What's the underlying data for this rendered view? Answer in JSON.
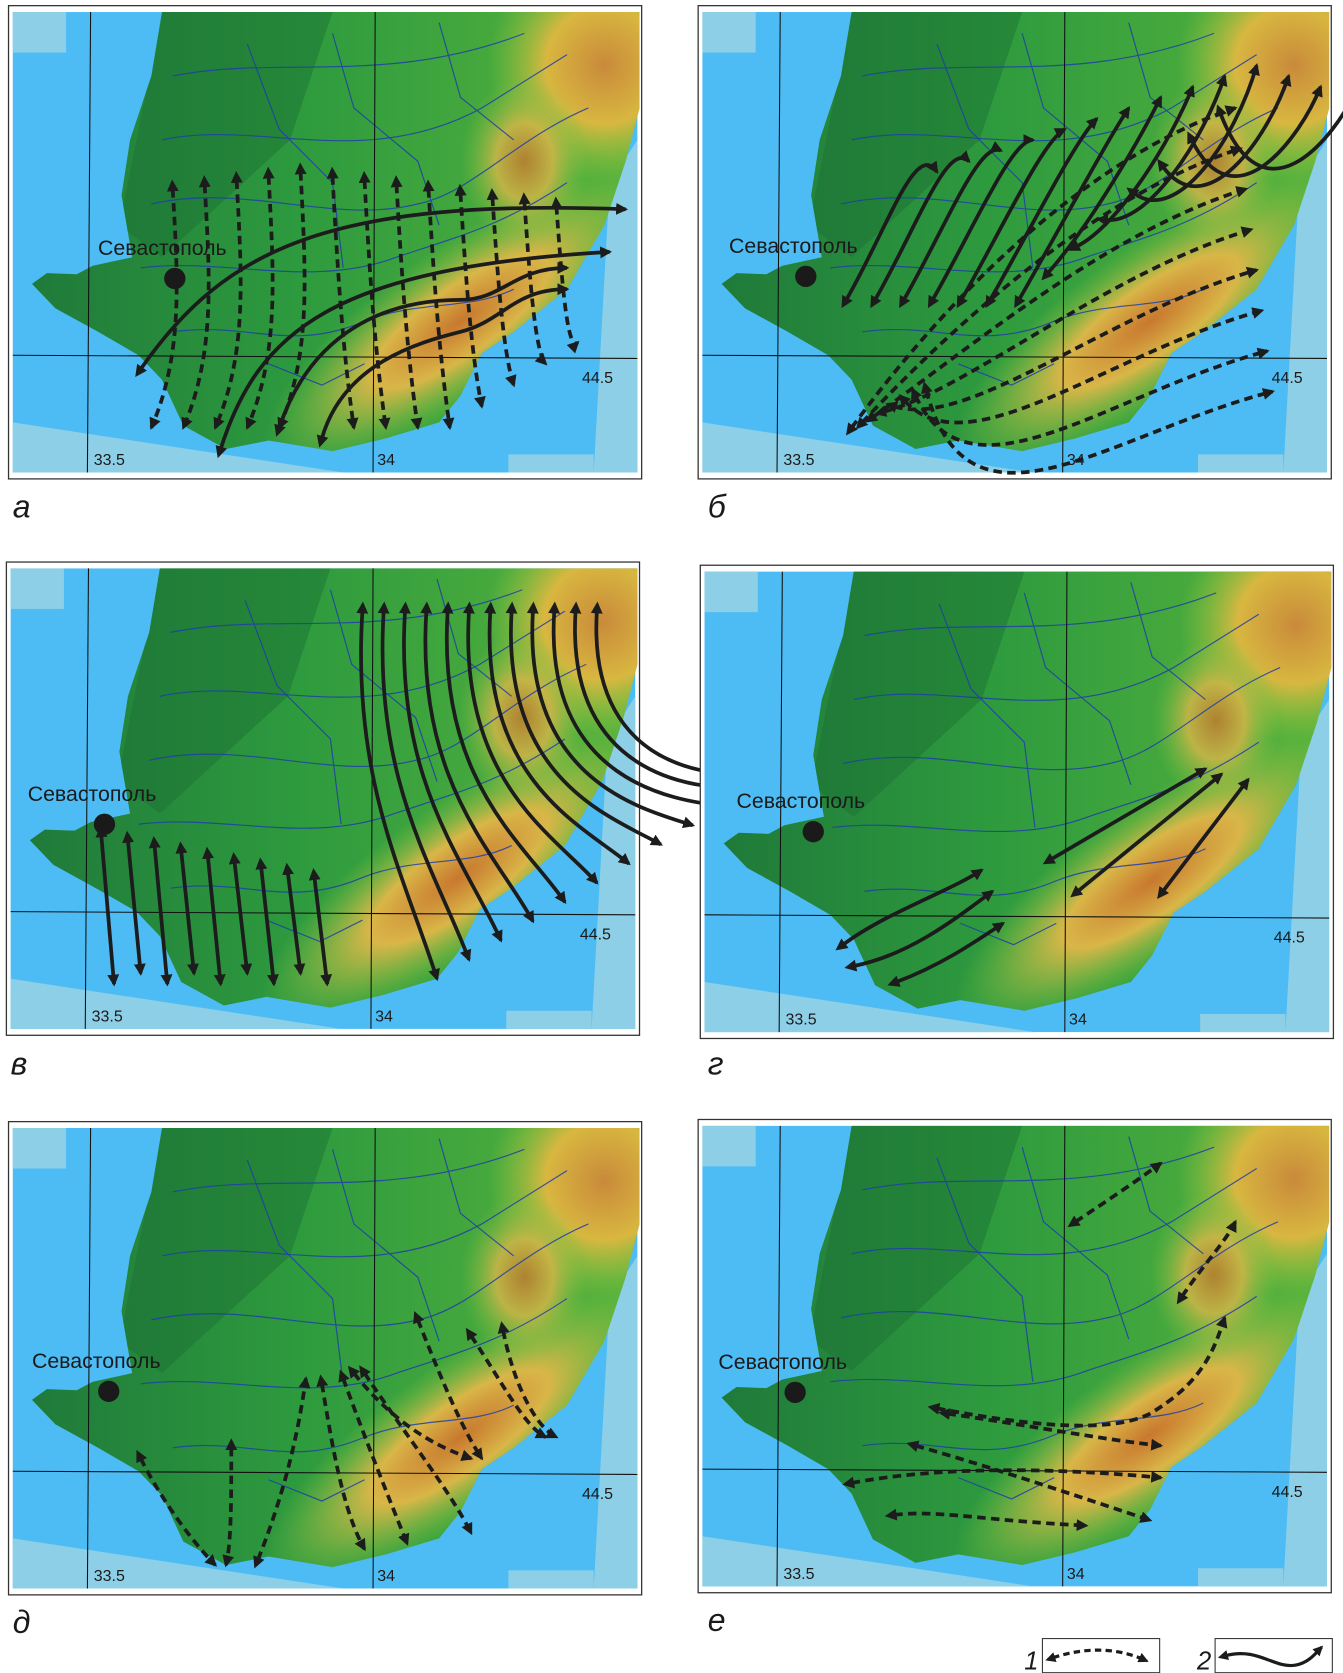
{
  "panels": [
    {
      "label": "а",
      "city": "Севастополь",
      "lon_left": "33.5",
      "lon_right": "34",
      "lat": "44.5"
    },
    {
      "label": "б",
      "city": "Севастополь",
      "lon_left": "33.5",
      "lon_right": "34",
      "lat": "44.5"
    },
    {
      "label": "в",
      "city": "Севастополь",
      "lon_left": "33.5",
      "lon_right": "34",
      "lat": "44.5"
    },
    {
      "label": "г",
      "city": "Севастополь",
      "lon_left": "33.5",
      "lon_right": "34",
      "lat": "44.5"
    },
    {
      "label": "д",
      "city": "Севастополь",
      "lon_left": "33.5",
      "lon_right": "34",
      "lat": "44.5"
    },
    {
      "label": "е",
      "city": "Севастополь",
      "lon_left": "33.5",
      "lon_right": "34",
      "lat": "44.5"
    }
  ],
  "legend": [
    {
      "label": "1"
    },
    {
      "label": "2"
    }
  ]
}
